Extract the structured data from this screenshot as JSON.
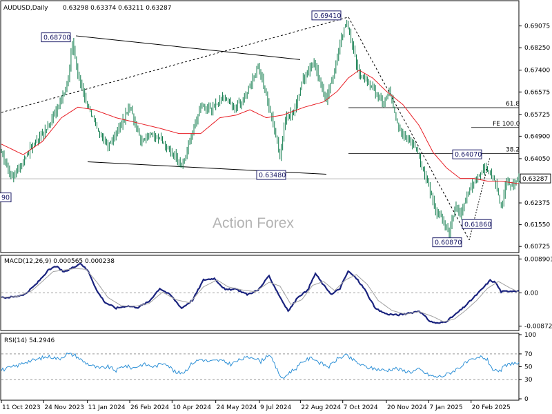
{
  "header": {
    "symbol": "AUDUSD,Daily",
    "ohlc": "0.63298 0.63374 0.63211 0.63287"
  },
  "watermark": "Action Forex",
  "colors": {
    "candle": "#0d7a4a",
    "ma": "#e81e25",
    "macd": "#1a237e",
    "signal": "#a0a0a0",
    "rsi": "#2b8fd6",
    "trend": "#000000",
    "box_border": "#1a1a66"
  },
  "chart_data": [
    {
      "type": "candlestick",
      "title": "AUDUSD,Daily",
      "ylim": [
        0.606,
        0.699
      ],
      "y_ticks": [
        "0.69075",
        "0.68250",
        "0.67400",
        "0.66575",
        "0.65725",
        "0.64900",
        "0.64050",
        "0.63200",
        "0.62375",
        "0.61550",
        "0.60725"
      ],
      "current_price": "0.63287",
      "x_ticks": [
        "11 Oct 2023",
        "24 Nov 2023",
        "11 Jan 2024",
        "26 Feb 2024",
        "10 Apr 2024",
        "24 May 2024",
        "9 Jul 2024",
        "22 Aug 2024",
        "7 Oct 2024",
        "20 Nov 2024",
        "7 Jan 2025",
        "20 Feb 2025"
      ],
      "close_anchors": [
        [
          0,
          0.642
        ],
        [
          8,
          0.633
        ],
        [
          22,
          0.645
        ],
        [
          36,
          0.654
        ],
        [
          48,
          0.668
        ],
        [
          52,
          0.684
        ],
        [
          56,
          0.672
        ],
        [
          62,
          0.662
        ],
        [
          70,
          0.652
        ],
        [
          78,
          0.645
        ],
        [
          86,
          0.652
        ],
        [
          94,
          0.66
        ],
        [
          102,
          0.648
        ],
        [
          112,
          0.65
        ],
        [
          122,
          0.644
        ],
        [
          128,
          0.642
        ],
        [
          132,
          0.637
        ],
        [
          138,
          0.647
        ],
        [
          146,
          0.66
        ],
        [
          154,
          0.659
        ],
        [
          162,
          0.664
        ],
        [
          170,
          0.66
        ],
        [
          176,
          0.662
        ],
        [
          184,
          0.67
        ],
        [
          188,
          0.676
        ],
        [
          194,
          0.664
        ],
        [
          200,
          0.652
        ],
        [
          204,
          0.642
        ],
        [
          208,
          0.656
        ],
        [
          214,
          0.658
        ],
        [
          220,
          0.669
        ],
        [
          228,
          0.677
        ],
        [
          232,
          0.672
        ],
        [
          238,
          0.663
        ],
        [
          244,
          0.674
        ],
        [
          248,
          0.684
        ],
        [
          252,
          0.692
        ],
        [
          256,
          0.686
        ],
        [
          262,
          0.672
        ],
        [
          268,
          0.67
        ],
        [
          274,
          0.665
        ],
        [
          280,
          0.662
        ],
        [
          284,
          0.666
        ],
        [
          290,
          0.654
        ],
        [
          296,
          0.648
        ],
        [
          302,
          0.646
        ],
        [
          308,
          0.638
        ],
        [
          314,
          0.628
        ],
        [
          318,
          0.62
        ],
        [
          324,
          0.617
        ],
        [
          328,
          0.612
        ],
        [
          332,
          0.622
        ],
        [
          336,
          0.62
        ],
        [
          342,
          0.628
        ],
        [
          348,
          0.634
        ],
        [
          354,
          0.637
        ],
        [
          358,
          0.635
        ],
        [
          362,
          0.631
        ],
        [
          366,
          0.622
        ],
        [
          370,
          0.632
        ],
        [
          374,
          0.63
        ],
        [
          379,
          0.6329
        ]
      ],
      "ma_anchors": [
        [
          0,
          0.646
        ],
        [
          16,
          0.642
        ],
        [
          30,
          0.647
        ],
        [
          44,
          0.656
        ],
        [
          56,
          0.66
        ],
        [
          68,
          0.659
        ],
        [
          84,
          0.656
        ],
        [
          100,
          0.654
        ],
        [
          116,
          0.652
        ],
        [
          130,
          0.65
        ],
        [
          146,
          0.65
        ],
        [
          160,
          0.656
        ],
        [
          172,
          0.657
        ],
        [
          182,
          0.659
        ],
        [
          194,
          0.656
        ],
        [
          206,
          0.657
        ],
        [
          222,
          0.66
        ],
        [
          236,
          0.662
        ],
        [
          246,
          0.666
        ],
        [
          254,
          0.671
        ],
        [
          262,
          0.674
        ],
        [
          272,
          0.671
        ],
        [
          282,
          0.666
        ],
        [
          294,
          0.661
        ],
        [
          306,
          0.653
        ],
        [
          316,
          0.643
        ],
        [
          326,
          0.637
        ],
        [
          336,
          0.633
        ],
        [
          346,
          0.633
        ],
        [
          356,
          0.632
        ],
        [
          366,
          0.632
        ],
        [
          379,
          0.631
        ]
      ],
      "annotations": [
        "0.68700",
        "0.69410",
        "0.63480",
        "0.64070",
        "0.61860",
        "0.60870"
      ],
      "fibonacci": [
        "61.8",
        "FE 100.0",
        "38.2"
      ],
      "left_edge_label": "90"
    },
    {
      "type": "line",
      "title": "MACD(12,26,9) 0.000565 0.000238",
      "ylim": [
        -0.0095,
        0.0095
      ],
      "y_ticks": [
        "0.008901",
        "0.00",
        "-0.008729"
      ],
      "series": [
        {
          "role": "macd",
          "anchors": [
            [
              0,
              -0.0013
            ],
            [
              10,
              -0.001
            ],
            [
              18,
              -0.0002
            ],
            [
              26,
              0.0025
            ],
            [
              34,
              0.0058
            ],
            [
              40,
              0.007
            ],
            [
              46,
              0.0054
            ],
            [
              52,
              0.0066
            ],
            [
              58,
              0.0078
            ],
            [
              64,
              0.0055
            ],
            [
              70,
              0.0005
            ],
            [
              76,
              -0.0025
            ],
            [
              84,
              -0.004
            ],
            [
              92,
              -0.0034
            ],
            [
              100,
              -0.0038
            ],
            [
              108,
              -0.0023
            ],
            [
              116,
              0.0012
            ],
            [
              124,
              -0.0006
            ],
            [
              132,
              -0.004
            ],
            [
              140,
              -0.0019
            ],
            [
              148,
              0.0034
            ],
            [
              156,
              0.0038
            ],
            [
              164,
              0.0008
            ],
            [
              172,
              0.001
            ],
            [
              180,
              -0.0004
            ],
            [
              188,
              0.0007
            ],
            [
              196,
              0.0044
            ],
            [
              204,
              -0.001
            ],
            [
              210,
              -0.0048
            ],
            [
              218,
              -0.0008
            ],
            [
              224,
              0.0005
            ],
            [
              230,
              0.0051
            ],
            [
              236,
              0.002
            ],
            [
              242,
              -0.0004
            ],
            [
              248,
              0.0012
            ],
            [
              254,
              0.0057
            ],
            [
              260,
              0.0038
            ],
            [
              266,
              0.001
            ],
            [
              274,
              -0.0042
            ],
            [
              282,
              -0.0055
            ],
            [
              290,
              -0.0058
            ],
            [
              298,
              -0.0054
            ],
            [
              306,
              -0.0047
            ],
            [
              314,
              -0.0075
            ],
            [
              320,
              -0.008
            ],
            [
              326,
              -0.0074
            ],
            [
              332,
              -0.0058
            ],
            [
              338,
              -0.004
            ],
            [
              346,
              -0.0012
            ],
            [
              352,
              0.001
            ],
            [
              358,
              0.0033
            ],
            [
              362,
              0.0027
            ],
            [
              366,
              0.0003
            ],
            [
              372,
              0.0005
            ],
            [
              379,
              0.0006
            ]
          ]
        },
        {
          "role": "signal",
          "anchors": [
            [
              0,
              -0.0012
            ],
            [
              12,
              -0.0009
            ],
            [
              22,
              0.0005
            ],
            [
              30,
              0.003
            ],
            [
              38,
              0.0056
            ],
            [
              46,
              0.006
            ],
            [
              54,
              0.0064
            ],
            [
              62,
              0.0062
            ],
            [
              70,
              0.0028
            ],
            [
              78,
              -0.0012
            ],
            [
              88,
              -0.0034
            ],
            [
              98,
              -0.0035
            ],
            [
              108,
              -0.0028
            ],
            [
              118,
              0.0002
            ],
            [
              128,
              -0.0018
            ],
            [
              138,
              -0.0026
            ],
            [
              148,
              0.0016
            ],
            [
              158,
              0.0034
            ],
            [
              166,
              0.0016
            ],
            [
              176,
              0.0008
            ],
            [
              186,
              0.0003
            ],
            [
              196,
              0.0028
            ],
            [
              204,
              0.0018
            ],
            [
              212,
              -0.003
            ],
            [
              220,
              -0.0018
            ],
            [
              228,
              0.002
            ],
            [
              236,
              0.003
            ],
            [
              244,
              0.0006
            ],
            [
              252,
              0.0034
            ],
            [
              260,
              0.0048
            ],
            [
              268,
              0.0022
            ],
            [
              276,
              -0.002
            ],
            [
              286,
              -0.0046
            ],
            [
              296,
              -0.0056
            ],
            [
              306,
              -0.0049
            ],
            [
              316,
              -0.0062
            ],
            [
              324,
              -0.0076
            ],
            [
              332,
              -0.0068
            ],
            [
              340,
              -0.0046
            ],
            [
              348,
              -0.002
            ],
            [
              356,
              0.0012
            ],
            [
              364,
              0.003
            ],
            [
              372,
              0.0014
            ],
            [
              379,
              0.0002
            ]
          ]
        }
      ]
    },
    {
      "type": "line",
      "title": "RSI(14) 54.2946",
      "ylim": [
        0,
        100
      ],
      "y_ticks": [
        "100",
        "70",
        "50",
        "30",
        "0"
      ],
      "levels": [
        70,
        30
      ],
      "series": [
        {
          "role": "rsi",
          "anchors": [
            [
              0,
              45
            ],
            [
              6,
              48
            ],
            [
              12,
              52
            ],
            [
              18,
              58
            ],
            [
              24,
              60
            ],
            [
              30,
              64
            ],
            [
              36,
              66
            ],
            [
              42,
              62
            ],
            [
              48,
              70
            ],
            [
              54,
              68
            ],
            [
              60,
              58
            ],
            [
              66,
              52
            ],
            [
              72,
              47
            ],
            [
              78,
              50
            ],
            [
              84,
              44
            ],
            [
              90,
              52
            ],
            [
              96,
              48
            ],
            [
              104,
              54
            ],
            [
              112,
              50
            ],
            [
              120,
              57
            ],
            [
              128,
              40
            ],
            [
              134,
              42
            ],
            [
              140,
              56
            ],
            [
              146,
              62
            ],
            [
              152,
              58
            ],
            [
              160,
              60
            ],
            [
              168,
              54
            ],
            [
              176,
              62
            ],
            [
              184,
              66
            ],
            [
              190,
              58
            ],
            [
              196,
              70
            ],
            [
              202,
              45
            ],
            [
              206,
              30
            ],
            [
              210,
              40
            ],
            [
              216,
              48
            ],
            [
              222,
              60
            ],
            [
              228,
              64
            ],
            [
              234,
              55
            ],
            [
              240,
              50
            ],
            [
              246,
              62
            ],
            [
              252,
              68
            ],
            [
              258,
              60
            ],
            [
              264,
              52
            ],
            [
              270,
              48
            ],
            [
              276,
              46
            ],
            [
              282,
              44
            ],
            [
              288,
              48
            ],
            [
              294,
              44
            ],
            [
              300,
              42
            ],
            [
              306,
              46
            ],
            [
              312,
              38
            ],
            [
              318,
              34
            ],
            [
              324,
              36
            ],
            [
              330,
              42
            ],
            [
              336,
              50
            ],
            [
              342,
              58
            ],
            [
              348,
              62
            ],
            [
              352,
              66
            ],
            [
              356,
              60
            ],
            [
              360,
              46
            ],
            [
              364,
              40
            ],
            [
              368,
              50
            ],
            [
              374,
              56
            ],
            [
              379,
              54
            ]
          ]
        }
      ]
    }
  ]
}
